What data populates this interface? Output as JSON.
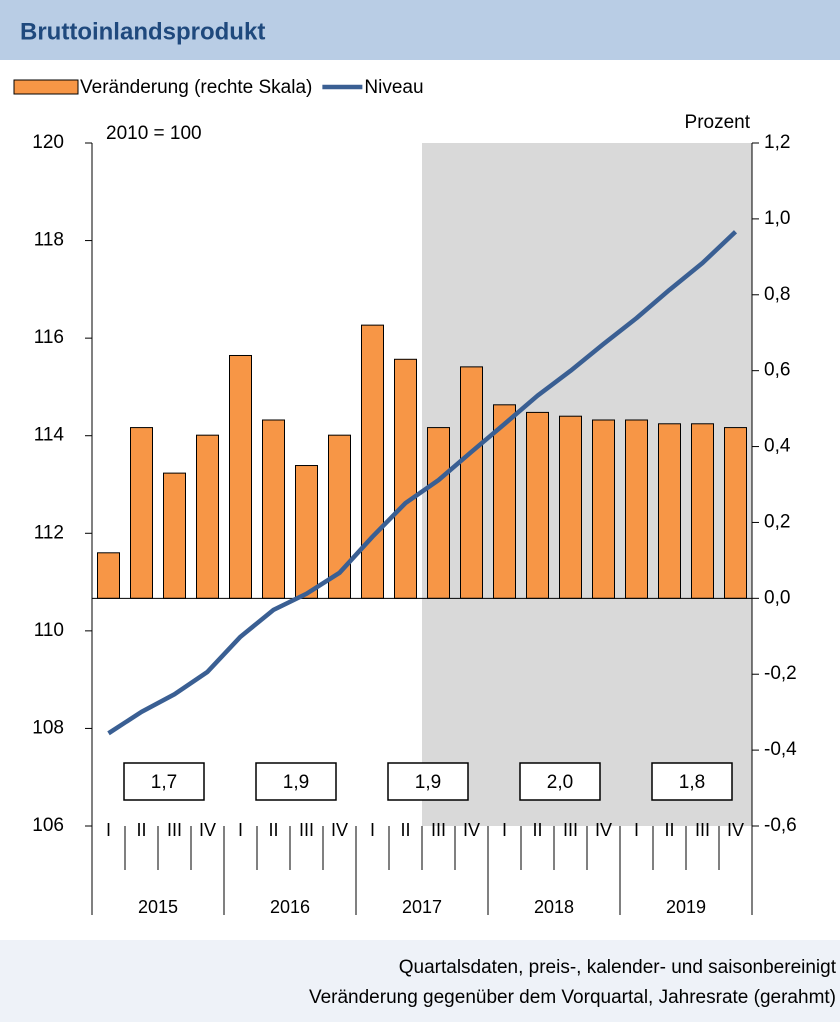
{
  "chart_data": {
    "type": "bar_line",
    "title": "Bruttoinlandsprodukt",
    "subtitle": "2010 = 100",
    "y2_label": "Prozent",
    "footnotes": [
      "Quartalsdaten, preis-, kalender- und saisonbereinigt",
      "Veränderung gegenüber dem Vorquartal, Jahresrate (gerahmt)"
    ],
    "categories": [
      "I",
      "II",
      "III",
      "IV",
      "I",
      "II",
      "III",
      "IV",
      "I",
      "II",
      "III",
      "IV",
      "I",
      "II",
      "III",
      "IV",
      "I",
      "II",
      "III",
      "IV"
    ],
    "category_groups": [
      "2015",
      "2016",
      "2017",
      "2018",
      "2019"
    ],
    "series": [
      {
        "name": "Veränderung (rechte Skala)",
        "type": "bar",
        "axis": "y2",
        "color": "#f79646",
        "values": [
          0.12,
          0.45,
          0.33,
          0.43,
          0.64,
          0.47,
          0.35,
          0.43,
          0.72,
          0.63,
          0.45,
          0.61,
          0.51,
          0.49,
          0.48,
          0.47,
          0.47,
          0.46,
          0.46,
          0.45
        ]
      },
      {
        "name": "Niveau",
        "type": "line",
        "axis": "y",
        "color": "#3a5f93",
        "values": [
          107.9,
          108.34,
          108.7,
          109.16,
          109.88,
          110.43,
          110.76,
          111.19,
          111.93,
          112.62,
          113.09,
          113.67,
          114.24,
          114.82,
          115.33,
          115.88,
          116.41,
          116.99,
          117.54,
          118.18
        ]
      }
    ],
    "annual_rates": {
      "values": [
        1.7,
        1.9,
        1.9,
        2.0,
        1.8
      ],
      "value_labels": [
        "1,7",
        "1,9",
        "1,9",
        "2,0",
        "1,8"
      ]
    },
    "ylim": [
      106,
      120
    ],
    "yticks": [
      106,
      108,
      110,
      112,
      114,
      116,
      118,
      120
    ],
    "y2lim": [
      -0.6,
      1.2
    ],
    "y2ticks": [
      {
        "value": -0.6,
        "label": "-0,6"
      },
      {
        "value": -0.4,
        "label": "-0,4"
      },
      {
        "value": -0.2,
        "label": "-0,2"
      },
      {
        "value": 0,
        "label": "0,0"
      },
      {
        "value": 0.2,
        "label": "0,2"
      },
      {
        "value": 0.4,
        "label": "0,4"
      },
      {
        "value": 0.6,
        "label": "0,6"
      },
      {
        "value": 0.8,
        "label": "0,8"
      },
      {
        "value": 1.0,
        "label": "1,0"
      },
      {
        "value": 1.2,
        "label": "1,2"
      }
    ],
    "grid": false
  }
}
